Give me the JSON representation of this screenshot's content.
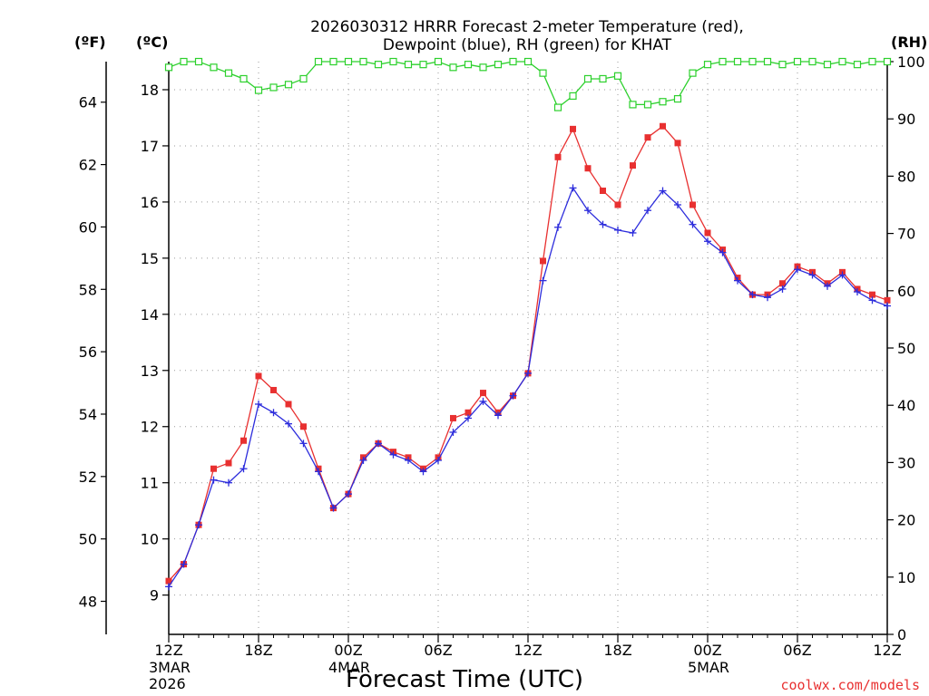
{
  "chart_data": {
    "type": "line",
    "title_line1": "2026030312 HRRR Forecast 2-meter Temperature (red),",
    "title_line2": "Dewpoint (blue), RH (green) for KHAT",
    "xlabel": "Forecast Time (UTC)",
    "credit": "coolwx.com/models",
    "unit_f": "(ºF)",
    "unit_c": "(ºC)",
    "unit_rh": "(RH)",
    "date_labels": [
      {
        "hour": 0,
        "line1": "3MAR",
        "line2": "2026"
      },
      {
        "hour": 12,
        "line1": "4MAR",
        "line2": ""
      },
      {
        "hour": 36,
        "line1": "5MAR",
        "line2": ""
      }
    ],
    "x_ticks": [
      {
        "hour": 0,
        "label": "12Z"
      },
      {
        "hour": 6,
        "label": "18Z"
      },
      {
        "hour": 12,
        "label": "00Z"
      },
      {
        "hour": 18,
        "label": "06Z"
      },
      {
        "hour": 24,
        "label": "12Z"
      },
      {
        "hour": 30,
        "label": "18Z"
      },
      {
        "hour": 36,
        "label": "00Z"
      },
      {
        "hour": 42,
        "label": "06Z"
      },
      {
        "hour": 48,
        "label": "12Z"
      }
    ],
    "xlim": [
      0,
      48
    ],
    "ylim_c": [
      8.3,
      18.5
    ],
    "ylim_rh": [
      0,
      100
    ],
    "celsius_ticks": [
      9,
      10,
      11,
      12,
      13,
      14,
      15,
      16,
      17,
      18
    ],
    "fahrenheit_ticks": [
      48,
      50,
      52,
      54,
      56,
      58,
      60,
      62,
      64
    ],
    "rh_ticks": [
      0,
      10,
      20,
      30,
      40,
      50,
      60,
      70,
      80,
      90,
      100
    ],
    "hours": [
      0,
      1,
      2,
      3,
      4,
      5,
      6,
      7,
      8,
      9,
      10,
      11,
      12,
      13,
      14,
      15,
      16,
      17,
      18,
      19,
      20,
      21,
      22,
      23,
      24,
      25,
      26,
      27,
      28,
      29,
      30,
      31,
      32,
      33,
      34,
      35,
      36,
      37,
      38,
      39,
      40,
      41,
      42,
      43,
      44,
      45,
      46,
      47,
      48
    ],
    "series": [
      {
        "name": "Temperature (C)",
        "color": "#e83030",
        "marker": "square-filled",
        "axis": "celsius",
        "values": [
          9.25,
          9.55,
          10.25,
          11.25,
          11.35,
          11.75,
          12.9,
          12.65,
          12.4,
          12.0,
          11.25,
          10.55,
          10.8,
          11.45,
          11.7,
          11.55,
          11.45,
          11.25,
          11.45,
          12.15,
          12.25,
          12.6,
          12.25,
          12.55,
          12.95,
          14.95,
          16.8,
          17.3,
          16.6,
          16.2,
          15.95,
          16.65,
          17.15,
          17.35,
          17.05,
          15.95,
          15.45,
          15.15,
          14.65,
          14.35,
          14.35,
          14.55,
          14.85,
          14.75,
          14.55,
          14.75,
          14.45,
          14.35,
          14.25
        ]
      },
      {
        "name": "Dewpoint (C)",
        "color": "#2c2cdc",
        "marker": "plus",
        "axis": "celsius",
        "values": [
          9.15,
          9.55,
          10.25,
          11.05,
          11.0,
          11.25,
          12.4,
          12.25,
          12.05,
          11.7,
          11.2,
          10.55,
          10.8,
          11.4,
          11.7,
          11.5,
          11.4,
          11.2,
          11.4,
          11.9,
          12.15,
          12.45,
          12.2,
          12.55,
          12.95,
          14.6,
          15.55,
          16.25,
          15.85,
          15.6,
          15.5,
          15.45,
          15.85,
          16.2,
          15.95,
          15.6,
          15.3,
          15.1,
          14.6,
          14.35,
          14.3,
          14.45,
          14.8,
          14.7,
          14.5,
          14.7,
          14.4,
          14.25,
          14.15
        ]
      },
      {
        "name": "RH (%)",
        "color": "#2cd02c",
        "marker": "square-open",
        "axis": "rh",
        "values": [
          99,
          100,
          100,
          99,
          98,
          97,
          95,
          95.5,
          96,
          97,
          100,
          100,
          100,
          100,
          99.5,
          100,
          99.5,
          99.5,
          100,
          99,
          99.5,
          99,
          99.5,
          100,
          100,
          98,
          92,
          94,
          97,
          97,
          97.5,
          92.5,
          92.5,
          93,
          93.5,
          98,
          99.5,
          100,
          100,
          100,
          100,
          99.5,
          100,
          100,
          99.5,
          100,
          99.5,
          100,
          100
        ]
      }
    ]
  }
}
